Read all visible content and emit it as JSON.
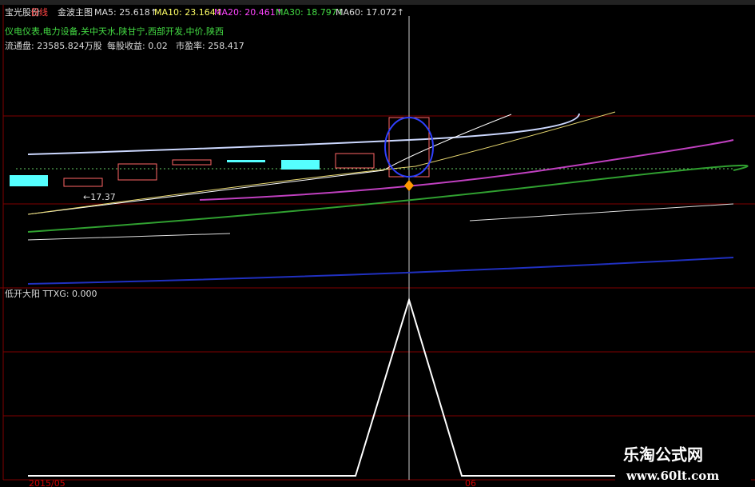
{
  "header": {
    "stock": "宝光股份",
    "period": "日线",
    "template": "金波主图",
    "ma": [
      "MA5: 25.618↑",
      "MA10: 23.164↑",
      "MA20: 20.461↑",
      "MA30: 18.797↑",
      "MA60: 17.072↑"
    ]
  },
  "sectors": "仪电仪表,电力设备,关中天水,陕甘宁,西部开发,中价,陕西",
  "info": [
    "流通盘: 23585.824万股",
    "每股收益: 0.02",
    "市盈率: 258.417"
  ],
  "low_marker": "←17.37",
  "indicator": "低开大阳 TTXG: 0.000",
  "dates": [
    "2015/05",
    "06"
  ],
  "watermark": {
    "name": "乐淘公式网",
    "url": "www.60lt.com"
  }
}
